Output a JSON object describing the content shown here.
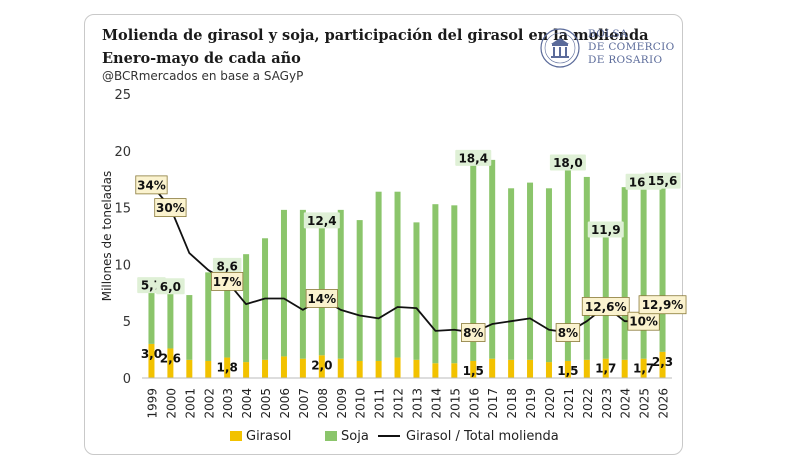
{
  "header": {
    "title": "Molienda de girasol y soja, participación del girasol en la molienda",
    "subtitle": "Enero-mayo de cada año",
    "source": "@BCRmercados en base a SAGyP"
  },
  "logo": {
    "lines": [
      "BOLSA",
      "DE COMERCIO",
      "DE ROSARIO"
    ]
  },
  "colors": {
    "girasol": "#f2c200",
    "soja": "#8bc56b",
    "line": "#111111",
    "label_box": "#fbf3cf",
    "label_box_border": "#8a7a3a",
    "logo": "#5b6b9a"
  },
  "chart_data": {
    "type": "bar",
    "stacked": true,
    "categories": [
      "1999",
      "2000",
      "2001",
      "2002",
      "2003",
      "2004",
      "2005",
      "2006",
      "2007",
      "2008",
      "2009",
      "2010",
      "2011",
      "2012",
      "2013",
      "2014",
      "2015",
      "2016",
      "2017",
      "2018",
      "2019",
      "2020",
      "2021",
      "2022",
      "2023",
      "2024",
      "2025",
      "2026"
    ],
    "series": [
      {
        "name": "Girasol",
        "color": "#f2c200",
        "values": [
          3.0,
          2.6,
          1.6,
          1.5,
          1.8,
          1.4,
          1.6,
          1.9,
          1.7,
          2.0,
          1.7,
          1.5,
          1.5,
          1.8,
          1.6,
          1.3,
          1.3,
          1.5,
          1.7,
          1.6,
          1.6,
          1.4,
          1.5,
          1.6,
          1.7,
          1.6,
          1.7,
          2.3
        ]
      },
      {
        "name": "Soja",
        "color": "#8bc56b",
        "values": [
          5.7,
          6.0,
          5.7,
          7.8,
          8.6,
          9.5,
          10.7,
          12.9,
          13.1,
          12.4,
          13.1,
          12.4,
          14.9,
          14.6,
          12.1,
          14.0,
          13.9,
          18.4,
          17.5,
          15.1,
          15.6,
          15.3,
          18.0,
          16.1,
          11.9,
          15.2,
          16.1,
          15.6
        ]
      },
      {
        "name": "Girasol / Total molienda",
        "type": "line",
        "axis": "percent",
        "color": "#111111",
        "values": [
          34,
          30,
          22,
          19,
          17,
          13,
          14,
          14,
          12,
          14,
          12,
          11,
          10.5,
          12.5,
          12.3,
          8.3,
          8.5,
          8,
          9.5,
          10,
          10.5,
          8.5,
          8,
          10,
          12.6,
          10,
          10,
          12.9
        ]
      }
    ],
    "ylabel": "Millones de toneladas",
    "ylim": [
      0,
      25
    ],
    "yticks": [
      0,
      5,
      10,
      15,
      20,
      25
    ],
    "legend_position": "bottom",
    "grid": false,
    "annotations": {
      "soja_labels": [
        {
          "category": "1999",
          "text": "5,7"
        },
        {
          "category": "2000",
          "text": "6,0"
        },
        {
          "category": "2003",
          "text": "8,6"
        },
        {
          "category": "2008",
          "text": "12,4"
        },
        {
          "category": "2016",
          "text": "18,4"
        },
        {
          "category": "2021",
          "text": "18,0"
        },
        {
          "category": "2023",
          "text": "11,9"
        },
        {
          "category": "2025",
          "text": "16,1"
        },
        {
          "category": "2026",
          "text": "15,6"
        }
      ],
      "girasol_labels": [
        {
          "category": "1999",
          "text": "3,0"
        },
        {
          "category": "2000",
          "text": "2,6"
        },
        {
          "category": "2003",
          "text": "1,8"
        },
        {
          "category": "2008",
          "text": "2,0"
        },
        {
          "category": "2016",
          "text": "1,5"
        },
        {
          "category": "2021",
          "text": "1,5"
        },
        {
          "category": "2023",
          "text": "1,7"
        },
        {
          "category": "2025",
          "text": "1,7"
        },
        {
          "category": "2026",
          "text": "2,3"
        }
      ],
      "percent_labels": [
        {
          "category": "1999",
          "text": "34%"
        },
        {
          "category": "2000",
          "text": "30%"
        },
        {
          "category": "2003",
          "text": "17%"
        },
        {
          "category": "2008",
          "text": "14%"
        },
        {
          "category": "2016",
          "text": "8%"
        },
        {
          "category": "2021",
          "text": "8%"
        },
        {
          "category": "2023",
          "text": "12,6%"
        },
        {
          "category": "2025",
          "text": "10%"
        },
        {
          "category": "2026",
          "text": "12,9%"
        }
      ]
    }
  }
}
